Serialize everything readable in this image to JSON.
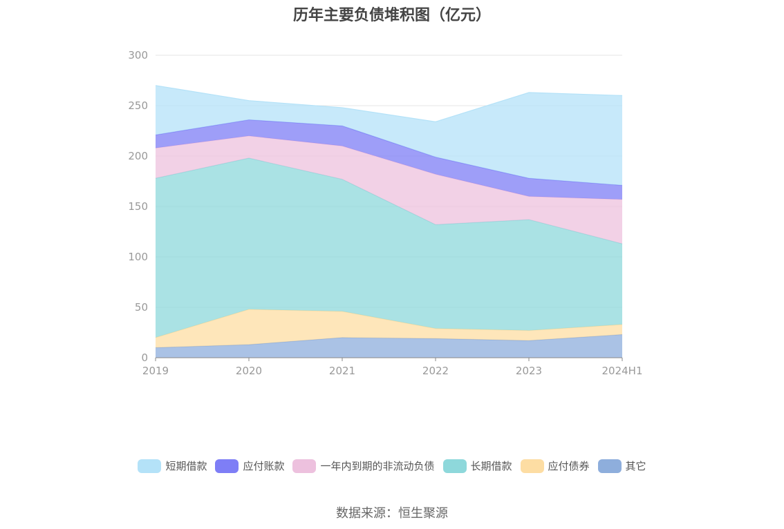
{
  "chart_data": {
    "type": "area",
    "stacked": true,
    "title": "历年主要负债堆积图（亿元）",
    "source": "数据来源：恒生聚源",
    "categories": [
      "2019",
      "2020",
      "2021",
      "2022",
      "2023",
      "2024H1"
    ],
    "ylim": [
      0,
      300
    ],
    "yticks": [
      0,
      50,
      100,
      150,
      200,
      250,
      300
    ],
    "grid": true,
    "legend_position": "bottom",
    "series": [
      {
        "name": "其它",
        "color": "#8EAEDC",
        "values": [
          10,
          13,
          20,
          19,
          17,
          23
        ]
      },
      {
        "name": "应付债券",
        "color": "#FDDDA3",
        "values": [
          10,
          35,
          26,
          10,
          10,
          10
        ]
      },
      {
        "name": "长期借款",
        "color": "#8ED8DB",
        "values": [
          158,
          150,
          131,
          103,
          110,
          80
        ]
      },
      {
        "name": "一年内到期的非流动负债",
        "color": "#EDC1DE",
        "values": [
          30,
          22,
          33,
          50,
          23,
          44
        ]
      },
      {
        "name": "应付账款",
        "color": "#7E7EF6",
        "values": [
          13,
          16,
          20,
          17,
          18,
          14
        ]
      },
      {
        "name": "短期借款",
        "color": "#B4E2F8",
        "values": [
          49,
          19,
          18,
          35,
          85,
          89
        ]
      }
    ],
    "legend_order": [
      "短期借款",
      "应付账款",
      "一年内到期的非流动负债",
      "长期借款",
      "应付债券",
      "其它"
    ]
  }
}
